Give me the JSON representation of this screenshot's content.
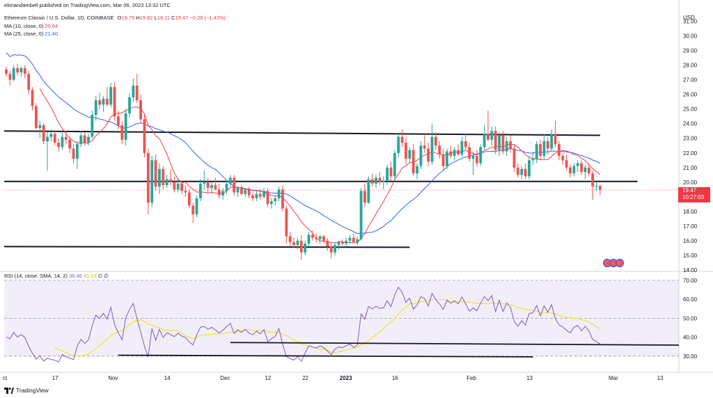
{
  "published_line": "elimandambell published on TradingView.com, Mar 06, 2023 13:32 UTC",
  "header": {
    "symbol": "Ethereum Classic / U.S. Dollar, 1D, COINBASE",
    "ohlc": {
      "o_label": "O",
      "o": "19.75",
      "h_label": "H",
      "h": "19.82",
      "l_label": "L",
      "l": "19.11",
      "c_label": "C",
      "c": "19.47",
      "change": "−0.28 (−1.42%)"
    },
    "ma10": {
      "label": "MA (10, close, 0)",
      "value": "20.64"
    },
    "ma25": {
      "label": "MA (25, close, 0)",
      "value": "21.40"
    }
  },
  "rsi": {
    "label": "RSI (14, close, SMA, 14, 2)",
    "value": "36.46",
    "ma_value": "45.19",
    "extra": "∅  ∅"
  },
  "price_axis": {
    "currency": "USD",
    "ticks": [
      "31.00",
      "30.00",
      "29.00",
      "28.00",
      "27.00",
      "26.00",
      "25.00",
      "24.00",
      "23.00",
      "22.00",
      "21.00",
      "20.00",
      "18.00",
      "17.00",
      "16.00",
      "15.00",
      "14.00"
    ]
  },
  "price_label": {
    "price": "19.47",
    "countdown": "10:27:03"
  },
  "rsi_axis": {
    "ticks": [
      "70.00",
      "60.00",
      "50.00",
      "40.00",
      "30.00"
    ]
  },
  "time_axis": {
    "ticks": [
      "ct",
      "17",
      "Nov",
      "14",
      "Dec",
      "12",
      "22",
      "2023",
      "16",
      "Feb",
      "13",
      "Mar",
      "13"
    ]
  },
  "footer": {
    "brand": "TradingView"
  },
  "colors": {
    "up": "#26a69a",
    "down": "#ef5350",
    "ma10": "#f23645",
    "ma25": "#2962ff",
    "rsi": "#7e57c2",
    "rsi_ma": "#e6e600",
    "line": "#131722"
  },
  "chart_data": [
    {
      "type": "candlestick",
      "title": "Ethereum Classic / U.S. Dollar, 1D, COINBASE",
      "ylabel": "USD",
      "ylim": [
        14,
        31.5
      ],
      "x_ticks": [
        "ct",
        "17",
        "Nov",
        "14",
        "Dec",
        "12",
        "22",
        "2023",
        "16",
        "Feb",
        "13",
        "Mar",
        "13"
      ],
      "x_tick_days": [
        0,
        13,
        28,
        43,
        58,
        70,
        80,
        90,
        104,
        124,
        140,
        162,
        175
      ],
      "candles": [
        [
          27.7,
          27.9,
          27.2,
          27.4
        ],
        [
          27.4,
          27.6,
          26.6,
          27.0
        ],
        [
          27.0,
          28.0,
          26.9,
          27.8
        ],
        [
          27.8,
          28.1,
          27.3,
          27.5
        ],
        [
          27.5,
          27.9,
          27.2,
          27.8
        ],
        [
          27.8,
          28.0,
          27.1,
          27.4
        ],
        [
          27.4,
          27.6,
          26.0,
          26.3
        ],
        [
          26.3,
          26.5,
          24.9,
          25.2
        ],
        [
          25.2,
          25.4,
          23.6,
          23.7
        ],
        [
          23.7,
          24.2,
          23.0,
          23.9
        ],
        [
          23.9,
          24.0,
          22.6,
          22.8
        ],
        [
          22.8,
          23.4,
          20.8,
          23.1
        ],
        [
          23.1,
          23.6,
          22.8,
          23.3
        ],
        [
          23.3,
          23.5,
          22.5,
          22.7
        ],
        [
          22.7,
          23.0,
          22.1,
          22.4
        ],
        [
          22.4,
          23.4,
          22.2,
          23.1
        ],
        [
          23.1,
          23.5,
          22.6,
          22.9
        ],
        [
          22.9,
          23.1,
          22.0,
          22.3
        ],
        [
          22.3,
          22.6,
          21.3,
          21.6
        ],
        [
          21.6,
          22.8,
          20.9,
          22.6
        ],
        [
          22.6,
          23.5,
          22.4,
          23.2
        ],
        [
          23.2,
          23.4,
          22.5,
          22.7
        ],
        [
          22.7,
          23.3,
          22.5,
          23.1
        ],
        [
          23.1,
          24.9,
          23.0,
          24.6
        ],
        [
          24.6,
          25.9,
          24.2,
          25.6
        ],
        [
          25.6,
          26.1,
          25.0,
          25.3
        ],
        [
          25.3,
          25.9,
          24.8,
          25.7
        ],
        [
          25.7,
          26.5,
          25.2,
          25.3
        ],
        [
          25.3,
          26.8,
          25.1,
          26.5
        ],
        [
          26.5,
          26.8,
          24.2,
          24.5
        ],
        [
          24.5,
          24.9,
          23.6,
          23.9
        ],
        [
          23.9,
          24.2,
          22.6,
          22.9
        ],
        [
          22.9,
          25.0,
          22.5,
          24.7
        ],
        [
          24.7,
          26.1,
          24.4,
          25.8
        ],
        [
          25.8,
          27.1,
          25.5,
          26.6
        ],
        [
          26.6,
          27.4,
          25.4,
          25.6
        ],
        [
          25.6,
          26.0,
          24.0,
          24.3
        ],
        [
          24.3,
          24.6,
          21.7,
          22.0
        ],
        [
          22.0,
          22.3,
          17.8,
          18.6
        ],
        [
          18.6,
          21.8,
          18.3,
          21.5
        ],
        [
          21.5,
          21.9,
          19.4,
          19.7
        ],
        [
          19.7,
          21.3,
          19.2,
          20.9
        ],
        [
          20.9,
          21.1,
          19.5,
          19.8
        ],
        [
          19.8,
          20.5,
          19.6,
          20.2
        ],
        [
          20.2,
          20.9,
          19.8,
          20.0
        ],
        [
          20.0,
          20.4,
          19.3,
          19.5
        ],
        [
          19.5,
          20.2,
          19.3,
          19.9
        ],
        [
          19.9,
          20.1,
          19.2,
          19.4
        ],
        [
          19.4,
          19.8,
          19.0,
          19.3
        ],
        [
          19.3,
          19.5,
          18.2,
          18.4
        ],
        [
          18.4,
          18.6,
          17.2,
          17.8
        ],
        [
          17.8,
          19.1,
          17.6,
          18.9
        ],
        [
          18.9,
          20.2,
          18.7,
          19.9
        ],
        [
          19.9,
          20.8,
          19.5,
          20.0
        ],
        [
          20.0,
          20.3,
          19.3,
          19.6
        ],
        [
          19.6,
          20.0,
          19.2,
          19.8
        ],
        [
          19.8,
          20.3,
          19.5,
          19.5
        ],
        [
          19.5,
          19.9,
          18.9,
          19.1
        ],
        [
          19.1,
          19.6,
          18.8,
          19.4
        ],
        [
          19.4,
          20.1,
          19.2,
          19.9
        ],
        [
          19.9,
          20.5,
          19.7,
          20.3
        ],
        [
          20.3,
          20.5,
          19.1,
          19.3
        ],
        [
          19.3,
          19.7,
          19.0,
          19.6
        ],
        [
          19.6,
          19.8,
          19.1,
          19.2
        ],
        [
          19.2,
          19.6,
          19.0,
          19.5
        ],
        [
          19.5,
          19.7,
          18.9,
          19.1
        ],
        [
          19.1,
          19.3,
          18.7,
          18.9
        ],
        [
          18.9,
          19.4,
          18.7,
          19.2
        ],
        [
          19.2,
          19.5,
          18.8,
          19.0
        ],
        [
          19.0,
          19.6,
          18.9,
          19.4
        ],
        [
          19.4,
          19.6,
          18.3,
          18.5
        ],
        [
          18.5,
          18.9,
          18.2,
          18.7
        ],
        [
          18.7,
          19.1,
          18.4,
          18.9
        ],
        [
          18.9,
          19.7,
          18.7,
          19.5
        ],
        [
          19.5,
          19.8,
          18.0,
          18.2
        ],
        [
          18.2,
          18.4,
          15.8,
          16.3
        ],
        [
          16.3,
          16.6,
          15.6,
          15.9
        ],
        [
          15.9,
          16.2,
          15.5,
          15.7
        ],
        [
          15.7,
          16.2,
          15.4,
          16.0
        ],
        [
          16.0,
          16.4,
          14.7,
          15.2
        ],
        [
          15.2,
          16.0,
          15.0,
          15.8
        ],
        [
          15.8,
          16.6,
          15.6,
          16.4
        ],
        [
          16.4,
          16.7,
          16.0,
          16.2
        ],
        [
          16.2,
          16.5,
          15.9,
          16.1
        ],
        [
          16.1,
          16.4,
          15.8,
          16.3
        ],
        [
          16.3,
          16.4,
          15.8,
          16.0
        ],
        [
          16.0,
          16.2,
          15.3,
          15.6
        ],
        [
          15.6,
          15.9,
          14.8,
          15.2
        ],
        [
          15.2,
          15.9,
          15.0,
          15.7
        ],
        [
          15.7,
          16.0,
          15.4,
          15.9
        ],
        [
          15.9,
          16.1,
          15.7,
          15.8
        ],
        [
          15.8,
          16.2,
          15.6,
          16.0
        ],
        [
          16.0,
          16.4,
          15.8,
          16.2
        ],
        [
          16.2,
          16.5,
          15.9,
          15.9
        ],
        [
          15.9,
          16.3,
          15.7,
          16.1
        ],
        [
          16.1,
          19.6,
          16.0,
          19.4
        ],
        [
          19.4,
          19.9,
          18.3,
          18.6
        ],
        [
          18.6,
          20.4,
          18.5,
          20.2
        ],
        [
          20.2,
          20.6,
          19.7,
          19.9
        ],
        [
          19.9,
          20.5,
          19.6,
          20.3
        ],
        [
          20.3,
          20.7,
          19.8,
          20.0
        ],
        [
          20.0,
          20.4,
          19.5,
          20.1
        ],
        [
          20.1,
          21.2,
          19.8,
          21.0
        ],
        [
          21.0,
          21.4,
          20.1,
          20.4
        ],
        [
          20.4,
          22.2,
          20.2,
          22.0
        ],
        [
          22.0,
          23.4,
          21.7,
          23.1
        ],
        [
          23.1,
          23.6,
          22.4,
          22.7
        ],
        [
          22.7,
          23.1,
          21.2,
          21.6
        ],
        [
          21.6,
          22.4,
          21.3,
          22.2
        ],
        [
          22.2,
          22.6,
          20.4,
          20.6
        ],
        [
          20.6,
          21.3,
          20.2,
          21.1
        ],
        [
          21.1,
          22.8,
          20.9,
          22.5
        ],
        [
          22.5,
          23.2,
          22.0,
          22.3
        ],
        [
          22.3,
          22.7,
          21.1,
          21.4
        ],
        [
          21.4,
          24.0,
          21.2,
          23.1
        ],
        [
          23.1,
          23.4,
          22.2,
          22.5
        ],
        [
          22.5,
          22.8,
          21.6,
          21.9
        ],
        [
          21.9,
          22.3,
          20.8,
          21.1
        ],
        [
          21.1,
          22.3,
          20.9,
          22.1
        ],
        [
          22.1,
          22.5,
          21.6,
          21.8
        ],
        [
          21.8,
          22.4,
          21.5,
          22.2
        ],
        [
          22.2,
          22.6,
          21.8,
          21.9
        ],
        [
          21.9,
          23.1,
          21.7,
          22.8
        ],
        [
          22.8,
          23.3,
          22.2,
          22.4
        ],
        [
          22.4,
          22.7,
          21.4,
          21.6
        ],
        [
          21.6,
          22.1,
          20.5,
          21.8
        ],
        [
          21.8,
          22.2,
          21.1,
          21.3
        ],
        [
          21.3,
          22.6,
          21.1,
          22.4
        ],
        [
          22.4,
          23.9,
          22.2,
          23.3
        ],
        [
          23.3,
          24.9,
          22.8,
          22.9
        ],
        [
          22.9,
          23.8,
          22.5,
          23.5
        ],
        [
          23.5,
          23.8,
          21.9,
          22.2
        ],
        [
          22.2,
          23.4,
          21.8,
          23.2
        ],
        [
          23.2,
          23.5,
          21.9,
          22.1
        ],
        [
          22.1,
          23.1,
          21.8,
          22.8
        ],
        [
          22.8,
          23.2,
          22.0,
          22.3
        ],
        [
          22.3,
          22.6,
          20.7,
          21.0
        ],
        [
          21.0,
          21.3,
          20.3,
          20.5
        ],
        [
          20.5,
          21.1,
          20.2,
          20.9
        ],
        [
          20.9,
          21.3,
          20.2,
          20.4
        ],
        [
          20.4,
          21.8,
          20.2,
          21.5
        ],
        [
          21.5,
          22.1,
          21.2,
          21.6
        ],
        [
          21.6,
          22.8,
          21.3,
          22.6
        ],
        [
          22.6,
          22.9,
          21.5,
          21.8
        ],
        [
          21.8,
          23.3,
          21.6,
          22.8
        ],
        [
          22.8,
          23.1,
          21.9,
          22.3
        ],
        [
          22.3,
          23.6,
          22.1,
          23.3
        ],
        [
          23.3,
          24.2,
          22.4,
          22.6
        ],
        [
          22.6,
          22.8,
          21.5,
          21.8
        ],
        [
          21.8,
          22.0,
          21.2,
          21.5
        ],
        [
          21.5,
          21.9,
          20.8,
          21.0
        ],
        [
          21.0,
          21.2,
          20.3,
          20.6
        ],
        [
          20.6,
          21.3,
          20.4,
          21.1
        ],
        [
          21.1,
          21.5,
          20.7,
          21.3
        ],
        [
          21.3,
          21.5,
          20.5,
          20.7
        ],
        [
          20.7,
          21.2,
          20.2,
          21.0
        ],
        [
          21.0,
          21.3,
          20.4,
          20.6
        ],
        [
          20.6,
          20.8,
          18.8,
          19.7
        ],
        [
          19.7,
          20.0,
          19.4,
          19.75
        ],
        [
          19.75,
          19.82,
          19.11,
          19.47
        ]
      ],
      "support_resistance_lines": [
        {
          "from": [
            0,
            23.5
          ],
          "to": [
            159,
            23.2
          ]
        },
        {
          "from": [
            0,
            20.05
          ],
          "to": [
            169,
            20.05
          ]
        },
        {
          "from": [
            0,
            15.6
          ],
          "to": [
            108,
            15.55
          ]
        }
      ],
      "ma_series": [
        {
          "name": "MA (10, close, 0)",
          "last": 20.64
        },
        {
          "name": "MA (25, close, 0)",
          "last": 21.4
        }
      ]
    },
    {
      "type": "line",
      "title": "RSI (14, close, SMA, 14, 2)",
      "ylim": [
        27,
        74
      ],
      "bands": [
        70,
        50,
        30
      ],
      "series": [
        {
          "name": "RSI",
          "values": [
            40.1,
            39.2,
            42.5,
            40.1,
            41.4,
            39.8,
            35.1,
            31.5,
            28.4,
            30.3,
            27.4,
            28.9,
            28.2,
            27.9,
            26.9,
            30.9,
            29.6,
            28.9,
            28.1,
            35.2,
            38.9,
            36.7,
            38.5,
            45.9,
            51.7,
            49.9,
            52.6,
            49.5,
            55.7,
            46.6,
            42.3,
            38.6,
            50.1,
            54.6,
            57.9,
            49.9,
            42.7,
            35.2,
            29.6,
            44.6,
            38.4,
            44.2,
            39.9,
            42.3,
            41.4,
            40.3,
            42.1,
            40.6,
            39.8,
            37.5,
            35.9,
            41.2,
            45.3,
            45.7,
            44.2,
            45.2,
            43.9,
            42.2,
            43.6,
            45.7,
            47.3,
            41.9,
            43.9,
            42.5,
            44.1,
            42.0,
            41.3,
            43.2,
            41.7,
            44.0,
            37.7,
            39.2,
            40.4,
            44.5,
            36.3,
            29.8,
            28.6,
            27.9,
            29.9,
            27.3,
            31.6,
            35.5,
            34.8,
            34.3,
            35.4,
            34.6,
            32.6,
            30.8,
            33.7,
            34.9,
            34.4,
            35.4,
            36.4,
            34.6,
            35.8,
            52.3,
            49.5,
            56.2,
            54.9,
            56.3,
            55.2,
            55.5,
            59.2,
            56.1,
            62.3,
            66.4,
            63.7,
            58.4,
            60.6,
            54.8,
            57.0,
            61.4,
            60.4,
            56.5,
            63.1,
            59.9,
            57.5,
            54.7,
            59.5,
            57.9,
            59.2,
            57.5,
            61.2,
            57.6,
            53.7,
            55.4,
            53.9,
            57.9,
            61.4,
            59.3,
            62.0,
            53.5,
            59.5,
            53.6,
            58.0,
            55.8,
            48.4,
            45.7,
            48.7,
            46.3,
            52.5,
            52.9,
            56.7,
            51.2,
            56.5,
            53.1,
            57.2,
            49.8,
            46.5,
            45.4,
            43.6,
            42.3,
            45.2,
            46.2,
            43.3,
            45.7,
            43.3,
            38.8,
            37.7,
            36.46
          ]
        },
        {
          "name": "RSI SMA",
          "last": 45.19
        }
      ]
    }
  ]
}
